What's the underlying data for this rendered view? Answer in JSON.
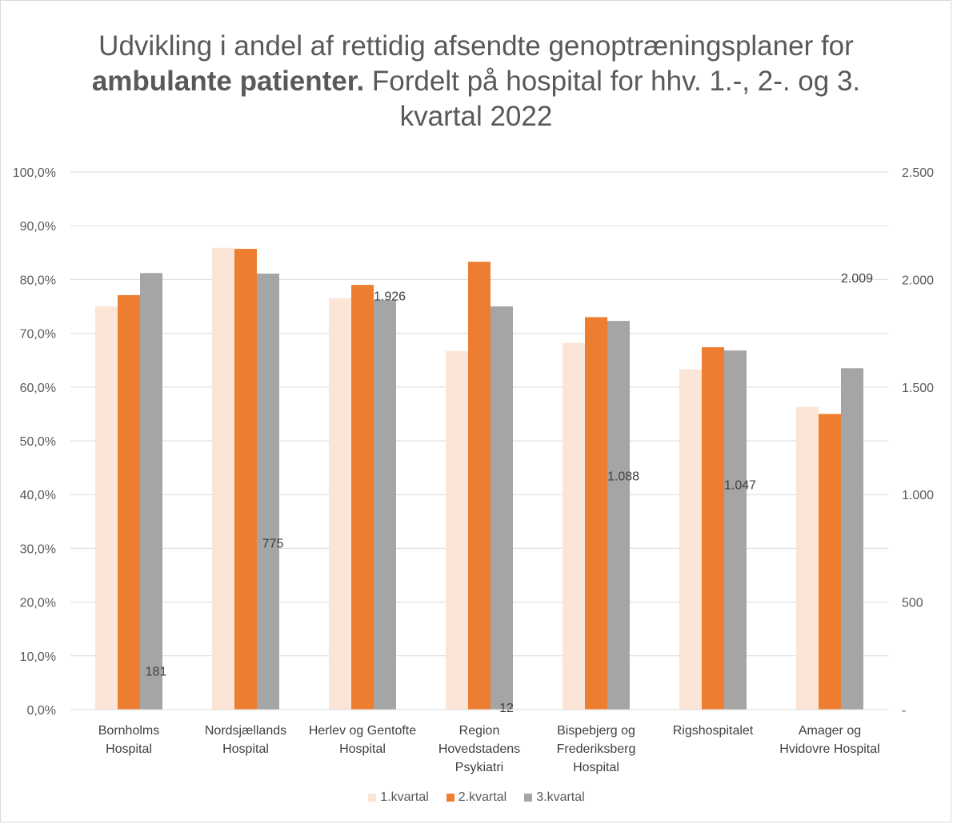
{
  "chart_data": {
    "type": "bar",
    "title": {
      "line1": "Udvikling i andel af rettidig afsendte genoptræningsplaner for",
      "line2_bold": "ambulante patienter.",
      "line2_rest": " Fordelt på hospital for hhv. 1.-, 2-. og 3.",
      "line3": "kvartal 2022"
    },
    "categories": [
      [
        "Bornholms",
        "Hospital"
      ],
      [
        "Nordsjællands",
        "Hospital"
      ],
      [
        "Herlev og Gentofte",
        "Hospital"
      ],
      [
        "Region",
        "Hovedstadens",
        "Psykiatri"
      ],
      [
        "Bispebjerg og",
        "Frederiksberg",
        "Hospital"
      ],
      [
        "Rigshospitalet"
      ],
      [
        "Amager og",
        "Hvidovre Hospital"
      ]
    ],
    "series": [
      {
        "name": "1.kvartal",
        "color": "#fbe5d6",
        "values": [
          75.0,
          85.9,
          76.5,
          66.7,
          68.2,
          63.3,
          56.3
        ]
      },
      {
        "name": "2.kvartal",
        "color": "#ed7d31",
        "values": [
          77.1,
          85.7,
          79.0,
          83.3,
          73.0,
          67.4,
          55.0
        ]
      },
      {
        "name": "3.kvartal",
        "color": "#a5a5a5",
        "values": [
          81.2,
          81.1,
          76.2,
          75.0,
          72.3,
          66.8,
          63.5
        ]
      }
    ],
    "secondary_labels": [
      "181",
      "775",
      "1.926",
      "12",
      "1.088",
      "1.047",
      "2.009"
    ],
    "secondary_values": [
      181,
      775,
      1926,
      12,
      1088,
      1047,
      2009
    ],
    "y_left": {
      "ylim": [
        0,
        100
      ],
      "ticks": [
        "0,0%",
        "10,0%",
        "20,0%",
        "30,0%",
        "40,0%",
        "50,0%",
        "60,0%",
        "70,0%",
        "80,0%",
        "90,0%",
        "100,0%"
      ]
    },
    "y_right": {
      "ylim": [
        0,
        2500
      ],
      "ticks": [
        "-",
        "500",
        "1.000",
        "1.500",
        "2.000",
        "2.500"
      ]
    },
    "grid": true,
    "legend_position": "bottom"
  }
}
